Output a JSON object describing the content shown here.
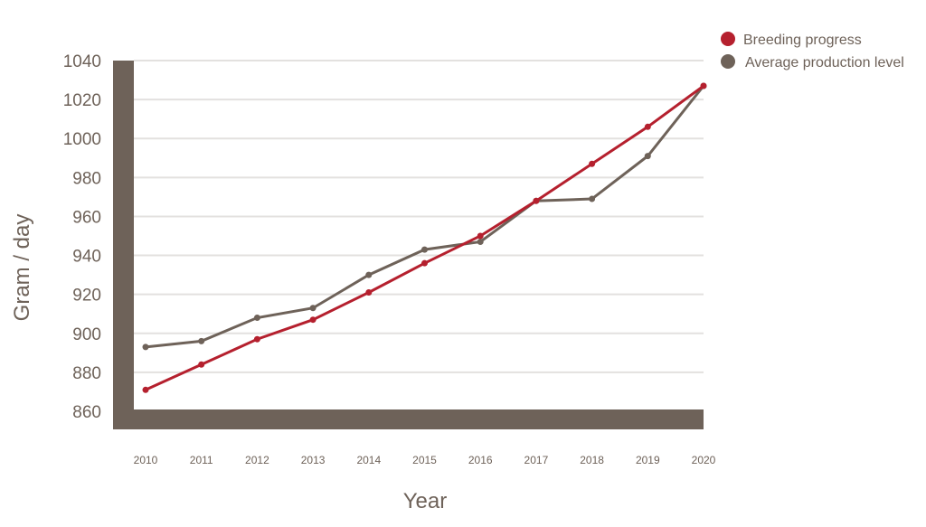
{
  "chart_data": {
    "type": "line",
    "title": "",
    "xlabel": "Year",
    "ylabel": "Gram / day",
    "x": [
      2010,
      2011,
      2012,
      2013,
      2014,
      2015,
      2016,
      2017,
      2018,
      2019,
      2020
    ],
    "ylim": [
      860,
      1040
    ],
    "yticks": [
      860,
      880,
      900,
      920,
      940,
      960,
      980,
      1000,
      1020,
      1040
    ],
    "grid": true,
    "legend_position": "top-right",
    "series": [
      {
        "name": "Breeding progress",
        "color": "#b5202e",
        "values": [
          871,
          884,
          897,
          907,
          921,
          936,
          950,
          968,
          987,
          1006,
          1027
        ]
      },
      {
        "name": "Average production level",
        "color": "#6e6259",
        "values": [
          893,
          896,
          908,
          913,
          930,
          943,
          947,
          968,
          969,
          991,
          1027
        ]
      }
    ]
  }
}
